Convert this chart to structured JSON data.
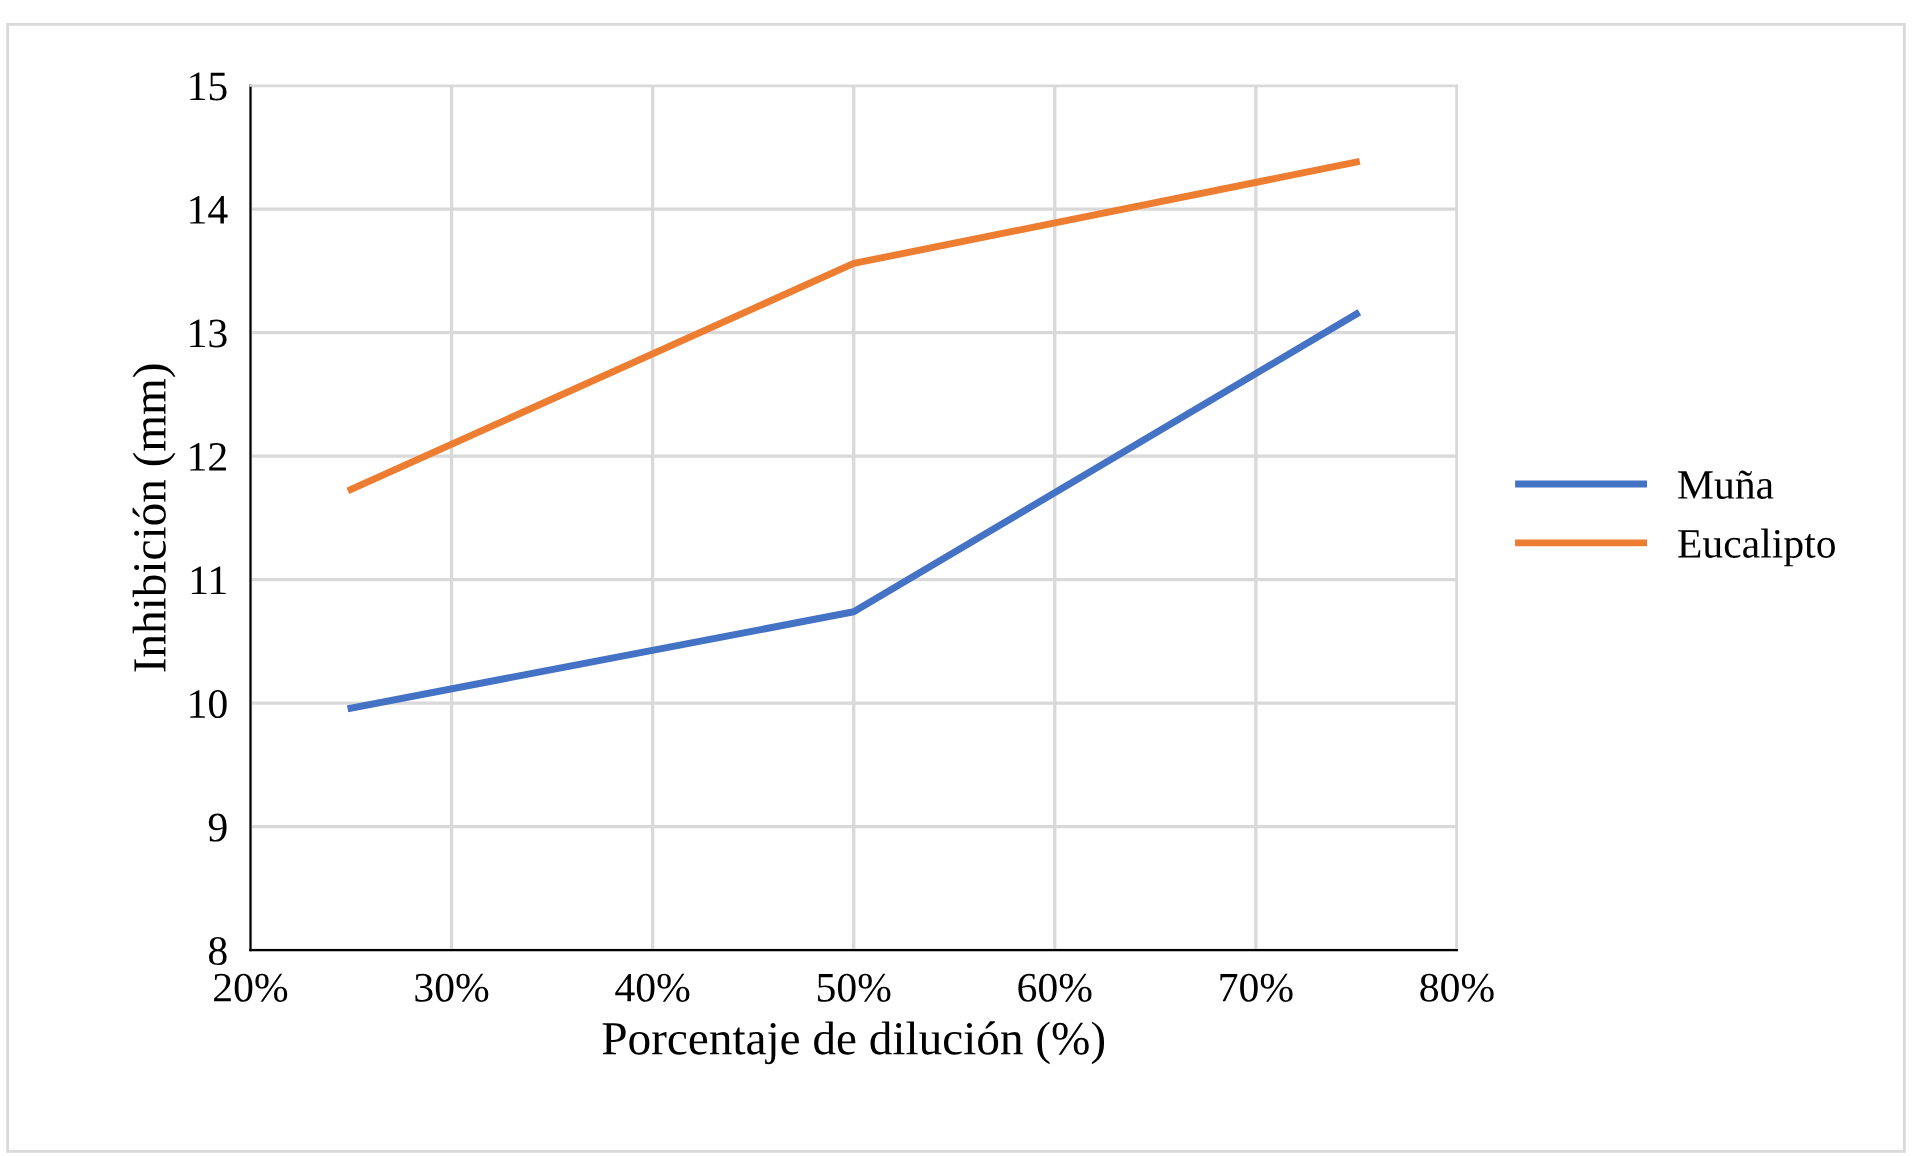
{
  "chart_data": {
    "type": "line",
    "xlabel": "Porcentaje de dilución (%)",
    "ylabel": "Inhibición (mm)",
    "x": [
      25,
      50,
      75
    ],
    "series": [
      {
        "name": "Muña",
        "color": "#4472c4",
        "values": [
          9.96,
          10.74,
          13.15
        ]
      },
      {
        "name": "Eucalipto",
        "color": "#ed7d31",
        "values": [
          11.73,
          13.56,
          14.38
        ]
      }
    ],
    "xlim": [
      20,
      80
    ],
    "xticks": [
      {
        "value": 20,
        "label": "20%"
      },
      {
        "value": 30,
        "label": "30%"
      },
      {
        "value": 40,
        "label": "40%"
      },
      {
        "value": 50,
        "label": "50%"
      },
      {
        "value": 60,
        "label": "60%"
      },
      {
        "value": 70,
        "label": "70%"
      },
      {
        "value": 80,
        "label": "80%"
      }
    ],
    "ylim": [
      8,
      15
    ],
    "yticks": [
      8,
      9,
      10,
      11,
      12,
      13,
      14,
      15
    ],
    "grid": true,
    "legend": "right",
    "marker": "none",
    "line_style": "solid"
  }
}
